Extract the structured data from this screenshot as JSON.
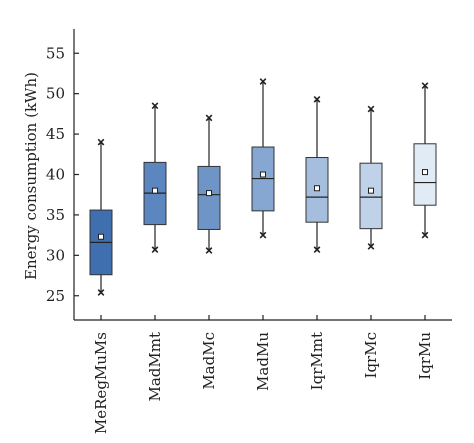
{
  "chart_data": {
    "type": "box",
    "title": "",
    "xlabel": "",
    "ylabel": "Energy consumption (kWh)",
    "ylim": [
      22,
      58
    ],
    "yticks": [
      25,
      30,
      35,
      40,
      45,
      50,
      55
    ],
    "grid": false,
    "categories": [
      "MeRegMuMs",
      "MadMmt",
      "MadMc",
      "MadMu",
      "IqrMmt",
      "IqrMc",
      "IqrMu"
    ],
    "boxes": [
      {
        "category": "MeRegMuMs",
        "whisker_low": 25.4,
        "q1": 27.6,
        "median": 31.6,
        "q3": 35.6,
        "whisker_high": 44.0,
        "mean": 32.3,
        "color": "#3f6fae"
      },
      {
        "category": "MadMmt",
        "whisker_low": 30.7,
        "q1": 33.8,
        "median": 37.7,
        "q3": 41.5,
        "whisker_high": 48.5,
        "mean": 38.0,
        "color": "#5c86bf"
      },
      {
        "category": "MadMc",
        "whisker_low": 30.6,
        "q1": 33.2,
        "median": 37.5,
        "q3": 41.0,
        "whisker_high": 47.0,
        "mean": 37.7,
        "color": "#6f95c7"
      },
      {
        "category": "MadMu",
        "whisker_low": 32.5,
        "q1": 35.5,
        "median": 39.5,
        "q3": 43.4,
        "whisker_high": 51.5,
        "mean": 40.0,
        "color": "#86a7d1"
      },
      {
        "category": "IqrMmt",
        "whisker_low": 30.7,
        "q1": 34.1,
        "median": 37.2,
        "q3": 42.1,
        "whisker_high": 49.3,
        "mean": 38.3,
        "color": "#a6bedd"
      },
      {
        "category": "IqrMc",
        "whisker_low": 31.1,
        "q1": 33.3,
        "median": 37.2,
        "q3": 41.4,
        "whisker_high": 48.1,
        "mean": 38.0,
        "color": "#c0d2e8"
      },
      {
        "category": "IqrMu",
        "whisker_low": 32.5,
        "q1": 36.2,
        "median": 39.0,
        "q3": 43.8,
        "whisker_high": 51.0,
        "mean": 40.3,
        "color": "#e1ebf5"
      }
    ]
  }
}
